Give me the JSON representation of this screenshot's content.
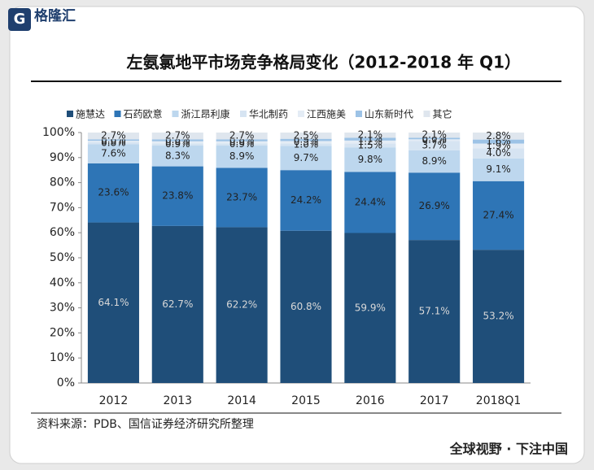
{
  "brand": "格隆汇",
  "footer": "全球视野 · 下注中国",
  "chart_data": {
    "type": "stacked_bar",
    "title": "左氨氯地平市场竞争格局变化（2012-2018 年 Q1）",
    "source": "资料来源：PDB、国信证券经济研究所整理",
    "categories": [
      "2012",
      "2013",
      "2014",
      "2015",
      "2016",
      "2017",
      "2018Q1"
    ],
    "ylim": [
      0,
      100
    ],
    "yticks": [
      {
        "value": 0,
        "label": "0%"
      },
      {
        "value": 10,
        "label": "10%"
      },
      {
        "value": 20,
        "label": "20%"
      },
      {
        "value": 30,
        "label": "30%"
      },
      {
        "value": 40,
        "label": "40%"
      },
      {
        "value": 50,
        "label": "50%"
      },
      {
        "value": 60,
        "label": "60%"
      },
      {
        "value": 70,
        "label": "70%"
      },
      {
        "value": 80,
        "label": "80%"
      },
      {
        "value": 90,
        "label": "90%"
      },
      {
        "value": 100,
        "label": "100%"
      }
    ],
    "legend": "top",
    "series": [
      {
        "name": "施慧达",
        "color": "#1f4e79",
        "values": [
          64.1,
          62.7,
          62.2,
          60.8,
          59.9,
          57.1,
          53.2
        ],
        "value_labels": [
          "64.1%",
          "62.7%",
          "62.2%",
          "60.8%",
          "59.9%",
          "57.1%",
          "53.2%"
        ]
      },
      {
        "name": "石药欧意",
        "color": "#2e75b6",
        "values": [
          23.6,
          23.8,
          23.7,
          24.2,
          24.4,
          26.9,
          27.4
        ],
        "value_labels": [
          "23.6%",
          "23.8%",
          "23.7%",
          "24.2%",
          "24.4%",
          "26.9%",
          "27.4%"
        ]
      },
      {
        "name": "浙江昂利康",
        "color": "#bdd7ee",
        "values": [
          7.6,
          8.3,
          8.9,
          9.7,
          9.8,
          8.9,
          9.1
        ],
        "value_labels": [
          "7.6%",
          "8.3%",
          "8.9%",
          "9.7%",
          "9.8%",
          "8.9%",
          "9.1%"
        ]
      },
      {
        "name": "华北制药",
        "color": "#d6e4f2",
        "values": [
          0.8,
          0.9,
          0.9,
          1.0,
          1.5,
          3.7,
          4.0
        ],
        "value_labels": [
          "0.8%",
          "0.9%",
          "0.9%",
          "1.0%",
          "1.5%",
          "3.7%",
          "4.0%"
        ]
      },
      {
        "name": "江西施美",
        "color": "#e4ecf5",
        "values": [
          0.6,
          0.8,
          0.8,
          0.9,
          1.2,
          0.7,
          1.9
        ],
        "value_labels": [
          "0.6%",
          "0.8%",
          "0.8%",
          "0.9%",
          "1.2%",
          "0.7%",
          "1.9%"
        ]
      },
      {
        "name": "山东新时代",
        "color": "#9dc3e6",
        "values": [
          0.6,
          0.8,
          0.8,
          0.9,
          1.1,
          0.6,
          1.6
        ],
        "value_labels": [
          "0.6%",
          "0.8%",
          "0.8%",
          "0.9%",
          "1.1%",
          "0.6%",
          "1.6%"
        ]
      },
      {
        "name": "其它",
        "color": "#dfe6ee",
        "values": [
          2.7,
          2.7,
          2.7,
          2.5,
          2.1,
          2.1,
          2.8
        ],
        "value_labels": [
          "2.7%",
          "2.7%",
          "2.7%",
          "2.5%",
          "2.1%",
          "2.1%",
          "2.8%"
        ]
      }
    ]
  }
}
